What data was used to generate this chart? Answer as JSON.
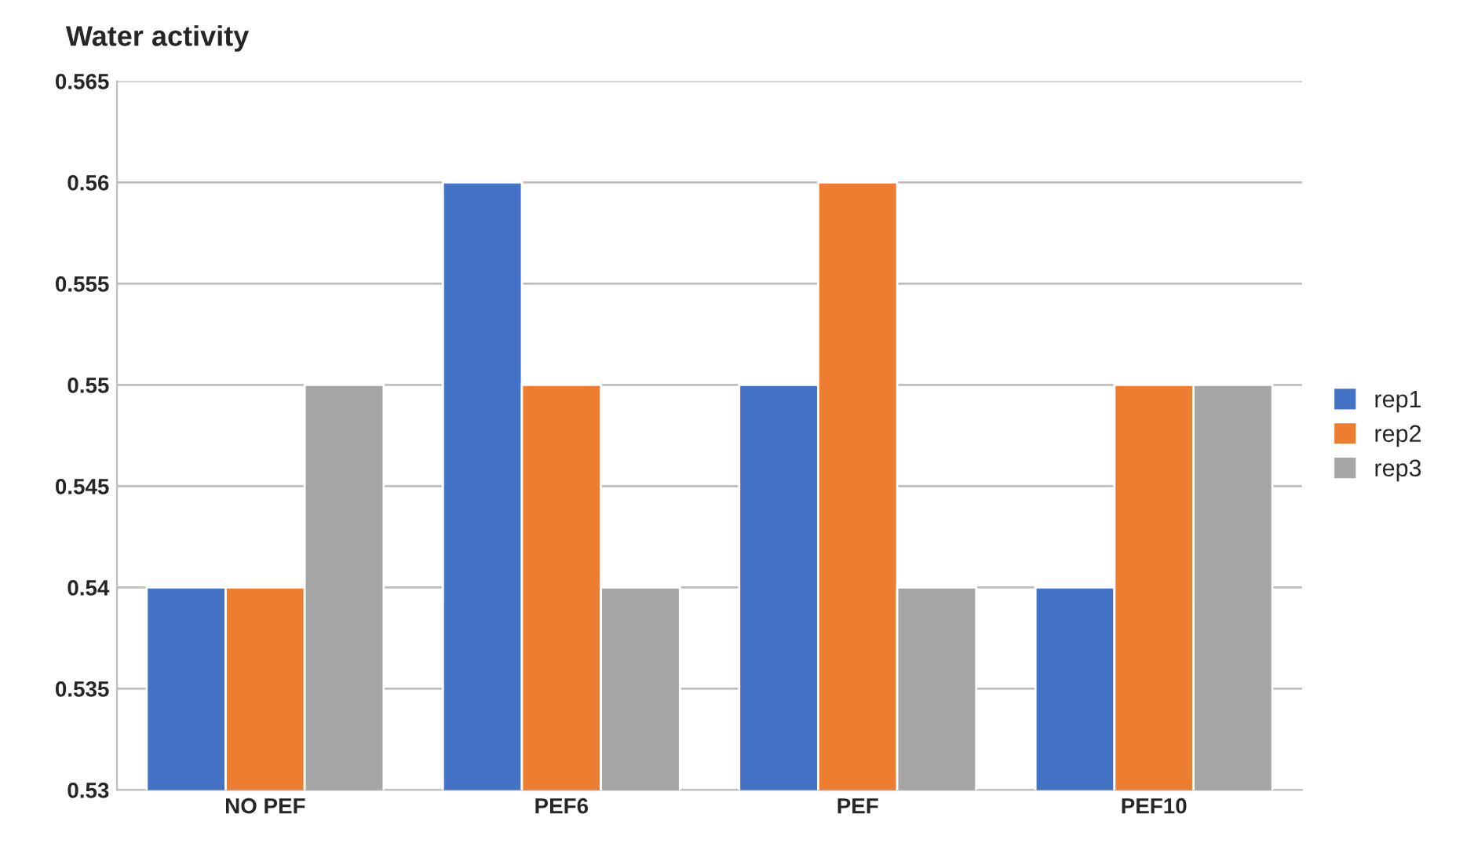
{
  "chart_data": {
    "type": "bar",
    "title": "Water activity",
    "categories": [
      "NO PEF",
      "PEF6",
      "PEF",
      "PEF10"
    ],
    "series": [
      {
        "name": "rep1",
        "color": "#4472c4",
        "values": [
          0.54,
          0.56,
          0.55,
          0.54
        ]
      },
      {
        "name": "rep2",
        "color": "#ed7d31",
        "values": [
          0.54,
          0.55,
          0.56,
          0.55
        ]
      },
      {
        "name": "rep3",
        "color": "#a5a5a5",
        "values": [
          0.55,
          0.54,
          0.54,
          0.55
        ]
      }
    ],
    "ylim": [
      0.53,
      0.565
    ],
    "yticks": [
      0.53,
      0.535,
      0.54,
      0.545,
      0.55,
      0.555,
      0.56,
      0.565
    ],
    "grid": "y",
    "legend": "right"
  }
}
